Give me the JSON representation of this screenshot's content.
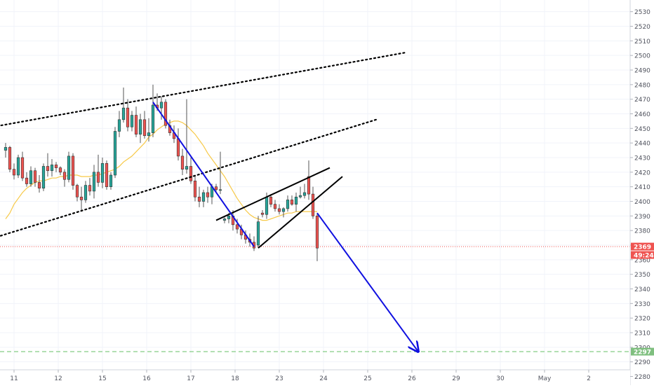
{
  "chart_data": {
    "type": "candlestick",
    "title": "",
    "xlabel": "",
    "ylabel": "",
    "ylim": [
      2274,
      2538
    ],
    "y_ticks": [
      2280,
      2290,
      2300,
      2310,
      2320,
      2330,
      2340,
      2350,
      2360,
      2370,
      2380,
      2390,
      2400,
      2410,
      2420,
      2430,
      2440,
      2450,
      2460,
      2470,
      2480,
      2490,
      2500,
      2510,
      2520,
      2530
    ],
    "x_ticks": [
      {
        "label": "11",
        "i": 2
      },
      {
        "label": "12",
        "i": 12.5
      },
      {
        "label": "15",
        "i": 23
      },
      {
        "label": "16",
        "i": 33.5
      },
      {
        "label": "17",
        "i": 44
      },
      {
        "label": "18",
        "i": 54.5
      },
      {
        "label": "23",
        "i": 65
      },
      {
        "label": "24",
        "i": 75.5
      },
      {
        "label": "25",
        "i": 86
      },
      {
        "label": "26",
        "i": 96.5
      },
      {
        "label": "29",
        "i": 107
      },
      {
        "label": "30",
        "i": 117.5
      },
      {
        "label": "May",
        "i": 128
      },
      {
        "label": "2",
        "i": 138.5
      }
    ],
    "grid": true,
    "colors": {
      "up": "#26a69a",
      "down": "#ef5350",
      "wick": "#555555",
      "ma": "#f7c948",
      "trend_blue": "#1010e0",
      "price_line": "#ef5350",
      "target_line": "#8fd18f",
      "target_label_bg": "#7fbf7f",
      "price_label_bg": "#ef5350"
    },
    "candles": [
      [
        2435,
        2440,
        2430,
        2437
      ],
      [
        2437,
        2438,
        2420,
        2422
      ],
      [
        2422,
        2426,
        2415,
        2418
      ],
      [
        2418,
        2432,
        2416,
        2430
      ],
      [
        2430,
        2434,
        2414,
        2416
      ],
      [
        2416,
        2420,
        2410,
        2412
      ],
      [
        2412,
        2424,
        2410,
        2421
      ],
      [
        2421,
        2423,
        2410,
        2413
      ],
      [
        2413,
        2418,
        2406,
        2409
      ],
      [
        2409,
        2426,
        2407,
        2424
      ],
      [
        2424,
        2433,
        2417,
        2421
      ],
      [
        2421,
        2429,
        2417,
        2425
      ],
      [
        2425,
        2427,
        2420,
        2423
      ],
      [
        2423,
        2424,
        2418,
        2420
      ],
      [
        2420,
        2422,
        2410,
        2415
      ],
      [
        2415,
        2434,
        2413,
        2431
      ],
      [
        2431,
        2433,
        2408,
        2411
      ],
      [
        2411,
        2412,
        2400,
        2403
      ],
      [
        2403,
        2410,
        2393,
        2401
      ],
      [
        2401,
        2414,
        2399,
        2411
      ],
      [
        2411,
        2416,
        2404,
        2407
      ],
      [
        2407,
        2425,
        2402,
        2420
      ],
      [
        2420,
        2432,
        2410,
        2413
      ],
      [
        2413,
        2430,
        2409,
        2426
      ],
      [
        2426,
        2428,
        2408,
        2410
      ],
      [
        2410,
        2420,
        2408,
        2418
      ],
      [
        2418,
        2451,
        2416,
        2448
      ],
      [
        2448,
        2462,
        2444,
        2456
      ],
      [
        2456,
        2478,
        2454,
        2464
      ],
      [
        2464,
        2470,
        2448,
        2451
      ],
      [
        2451,
        2462,
        2448,
        2459
      ],
      [
        2459,
        2465,
        2444,
        2446
      ],
      [
        2446,
        2460,
        2440,
        2456
      ],
      [
        2456,
        2462,
        2443,
        2445
      ],
      [
        2445,
        2457,
        2441,
        2447
      ],
      [
        2447,
        2480,
        2444,
        2466
      ],
      [
        2466,
        2474,
        2462,
        2464
      ],
      [
        2464,
        2472,
        2456,
        2468
      ],
      [
        2468,
        2470,
        2450,
        2452
      ],
      [
        2452,
        2456,
        2445,
        2447
      ],
      [
        2447,
        2452,
        2440,
        2443
      ],
      [
        2443,
        2450,
        2428,
        2431
      ],
      [
        2431,
        2436,
        2418,
        2422
      ],
      [
        2422,
        2470,
        2419,
        2424
      ],
      [
        2424,
        2430,
        2412,
        2414
      ],
      [
        2414,
        2418,
        2400,
        2403
      ],
      [
        2403,
        2410,
        2396,
        2400
      ],
      [
        2400,
        2408,
        2396,
        2406
      ],
      [
        2406,
        2410,
        2399,
        2403
      ],
      [
        2403,
        2412,
        2398,
        2410
      ],
      [
        2410,
        2412,
        2406,
        2408
      ],
      [
        2408,
        2434,
        2405,
        2408
      ],
      [
        2387,
        2389,
        2385,
        2388
      ],
      [
        2388,
        2392,
        2385,
        2390
      ],
      [
        2390,
        2394,
        2380,
        2384
      ],
      [
        2384,
        2388,
        2378,
        2381
      ],
      [
        2381,
        2384,
        2374,
        2377
      ],
      [
        2377,
        2380,
        2371,
        2374
      ],
      [
        2374,
        2378,
        2369,
        2372
      ],
      [
        2372,
        2376,
        2366,
        2368
      ],
      [
        2370,
        2390,
        2368,
        2386
      ],
      [
        2392,
        2394,
        2389,
        2391
      ],
      [
        2391,
        2406,
        2388,
        2403
      ],
      [
        2403,
        2405,
        2396,
        2398
      ],
      [
        2398,
        2401,
        2393,
        2395
      ],
      [
        2395,
        2398,
        2391,
        2393
      ],
      [
        2393,
        2396,
        2389,
        2395
      ],
      [
        2395,
        2404,
        2393,
        2401
      ],
      [
        2401,
        2404,
        2397,
        2398
      ],
      [
        2398,
        2406,
        2393,
        2403
      ],
      [
        2403,
        2410,
        2402,
        2404
      ],
      [
        2404,
        2412,
        2402,
        2406
      ],
      [
        2417,
        2428,
        2401,
        2405
      ],
      [
        2405,
        2410,
        2388,
        2390
      ],
      [
        2390,
        2392,
        2359,
        2368
      ]
    ],
    "ma_series": [
      2388,
      2392,
      2398,
      2402,
      2406,
      2409,
      2411,
      2413,
      2414,
      2414,
      2415,
      2416,
      2416,
      2417,
      2417,
      2418,
      2418,
      2418,
      2417,
      2417,
      2417,
      2418,
      2418,
      2419,
      2420,
      2421,
      2422,
      2424,
      2427,
      2429,
      2431,
      2434,
      2437,
      2440,
      2444,
      2446,
      2449,
      2451,
      2453,
      2454,
      2455,
      2455,
      2454,
      2452,
      2449,
      2446,
      2442,
      2438,
      2433,
      2429,
      2425,
      2421,
      2417,
      2412,
      2407,
      2402,
      2398,
      2394,
      2391,
      2389,
      2388,
      2387,
      2387,
      2388,
      2389,
      2390,
      2391,
      2392,
      2392,
      2393,
      2393,
      2393,
      2393,
      2393,
      2393
    ],
    "trend_lines": [
      {
        "style": "dotted",
        "color": "#000000",
        "points": [
          [
            -5,
            2450
          ],
          [
            95,
            2502
          ]
        ]
      },
      {
        "style": "dotted",
        "color": "#000000",
        "points": [
          [
            -5,
            2373
          ],
          [
            88,
            2456
          ]
        ]
      },
      {
        "style": "solid",
        "color": "#000000",
        "points": [
          [
            50,
            2387
          ],
          [
            77,
            2423
          ]
        ]
      },
      {
        "style": "solid",
        "color": "#000000",
        "points": [
          [
            60,
            2368
          ],
          [
            80,
            2417
          ]
        ]
      },
      {
        "style": "solid",
        "color": "#1010e0",
        "points": [
          [
            35,
            2468
          ],
          [
            59,
            2369
          ]
        ]
      },
      {
        "style": "arrow",
        "color": "#1010e0",
        "points": [
          [
            74,
            2392
          ],
          [
            98,
            2297
          ]
        ]
      }
    ],
    "price_line": 2369,
    "current_price_label": "2369",
    "countdown_label": "49:24",
    "target_level": 2297,
    "target_label": "2297"
  }
}
